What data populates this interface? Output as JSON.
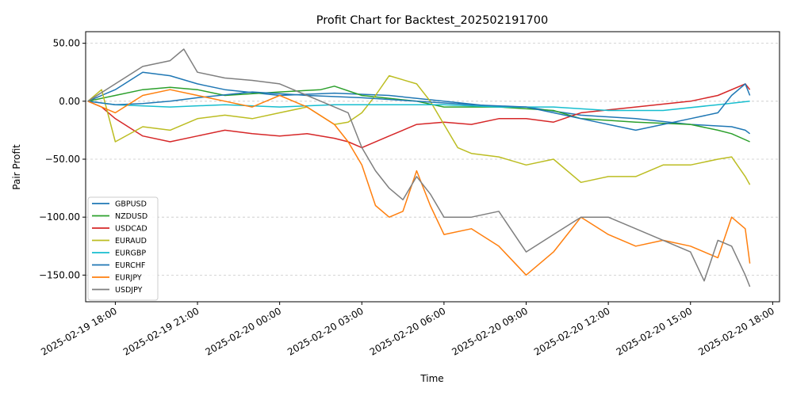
{
  "chart_data": {
    "type": "line",
    "title": "Profit Chart for Backtest_202502191700",
    "xlabel": "Time",
    "ylabel": "Pair Profit",
    "x_axis_type": "datetime",
    "xlim": [
      "2025-02-19 16:55",
      "2025-02-20 18:15"
    ],
    "ylim": [
      -173,
      60
    ],
    "x_ticks": [
      {
        "value": "2025-02-19 18:00",
        "label": "2025-02-19 18:00"
      },
      {
        "value": "2025-02-19 21:00",
        "label": "2025-02-19 21:00"
      },
      {
        "value": "2025-02-20 00:00",
        "label": "2025-02-20 00:00"
      },
      {
        "value": "2025-02-20 03:00",
        "label": "2025-02-20 03:00"
      },
      {
        "value": "2025-02-20 06:00",
        "label": "2025-02-20 06:00"
      },
      {
        "value": "2025-02-20 09:00",
        "label": "2025-02-20 09:00"
      },
      {
        "value": "2025-02-20 12:00",
        "label": "2025-02-20 12:00"
      },
      {
        "value": "2025-02-20 15:00",
        "label": "2025-02-20 15:00"
      },
      {
        "value": "2025-02-20 18:00",
        "label": "2025-02-20 18:00"
      }
    ],
    "y_ticks": [
      {
        "value": 50,
        "label": "50.00"
      },
      {
        "value": 0,
        "label": "0.00"
      },
      {
        "value": -50,
        "label": "−50.00"
      },
      {
        "value": -100,
        "label": "−100.00"
      },
      {
        "value": -150,
        "label": "−150.00"
      }
    ],
    "grid": {
      "y": true,
      "x": false,
      "style": "dashed"
    },
    "legend_position": "lower-left",
    "series": [
      {
        "name": "GBPUSD",
        "color": "#1f77b4",
        "x": [
          "2025-02-19 17:00",
          "2025-02-19 18:00",
          "2025-02-19 19:00",
          "2025-02-19 20:00",
          "2025-02-19 21:00",
          "2025-02-19 22:00",
          "2025-02-20 00:00",
          "2025-02-20 02:00",
          "2025-02-20 04:00",
          "2025-02-20 06:00",
          "2025-02-20 08:00",
          "2025-02-20 09:00",
          "2025-02-20 11:00",
          "2025-02-20 13:00",
          "2025-02-20 15:00",
          "2025-02-20 16:30",
          "2025-02-20 17:00",
          "2025-02-20 17:10"
        ],
        "y": [
          0,
          10,
          25,
          22,
          15,
          10,
          5,
          7,
          5,
          0,
          -5,
          -5,
          -12,
          -15,
          -20,
          -22,
          -25,
          -28
        ]
      },
      {
        "name": "NZDUSD",
        "color": "#2ca02c",
        "x": [
          "2025-02-19 17:00",
          "2025-02-19 18:00",
          "2025-02-19 19:00",
          "2025-02-19 20:00",
          "2025-02-19 21:00",
          "2025-02-19 22:00",
          "2025-02-20 00:00",
          "2025-02-20 01:30",
          "2025-02-20 02:00",
          "2025-02-20 03:00",
          "2025-02-20 05:00",
          "2025-02-20 06:00",
          "2025-02-20 08:00",
          "2025-02-20 10:00",
          "2025-02-20 11:00",
          "2025-02-20 13:00",
          "2025-02-20 15:00",
          "2025-02-20 16:00",
          "2025-02-20 16:30",
          "2025-02-20 17:10"
        ],
        "y": [
          0,
          5,
          10,
          12,
          10,
          5,
          8,
          10,
          13,
          5,
          0,
          -5,
          -5,
          -8,
          -15,
          -18,
          -20,
          -25,
          -28,
          -35
        ]
      },
      {
        "name": "USDCAD",
        "color": "#d62728",
        "x": [
          "2025-02-19 17:00",
          "2025-02-19 17:30",
          "2025-02-19 18:00",
          "2025-02-19 19:00",
          "2025-02-19 20:00",
          "2025-02-19 21:00",
          "2025-02-19 22:00",
          "2025-02-19 23:00",
          "2025-02-20 00:00",
          "2025-02-20 01:00",
          "2025-02-20 02:00",
          "2025-02-20 02:30",
          "2025-02-20 03:00",
          "2025-02-20 04:00",
          "2025-02-20 05:00",
          "2025-02-20 06:00",
          "2025-02-20 07:00",
          "2025-02-20 08:00",
          "2025-02-20 09:00",
          "2025-02-20 10:00",
          "2025-02-20 11:00",
          "2025-02-20 13:00",
          "2025-02-20 15:00",
          "2025-02-20 16:00",
          "2025-02-20 17:00",
          "2025-02-20 17:10"
        ],
        "y": [
          0,
          -5,
          -15,
          -30,
          -35,
          -30,
          -25,
          -28,
          -30,
          -28,
          -32,
          -35,
          -40,
          -30,
          -20,
          -18,
          -20,
          -15,
          -15,
          -18,
          -10,
          -5,
          0,
          5,
          15,
          10
        ]
      },
      {
        "name": "EURAUD",
        "color": "#bcbd22",
        "x": [
          "2025-02-19 17:00",
          "2025-02-19 17:30",
          "2025-02-19 18:00",
          "2025-02-19 19:00",
          "2025-02-19 20:00",
          "2025-02-19 21:00",
          "2025-02-19 22:00",
          "2025-02-19 23:00",
          "2025-02-20 00:00",
          "2025-02-20 01:00",
          "2025-02-20 02:00",
          "2025-02-20 02:30",
          "2025-02-20 03:00",
          "2025-02-20 03:30",
          "2025-02-20 04:00",
          "2025-02-20 05:00",
          "2025-02-20 05:30",
          "2025-02-20 06:00",
          "2025-02-20 06:30",
          "2025-02-20 07:00",
          "2025-02-20 08:00",
          "2025-02-20 09:00",
          "2025-02-20 10:00",
          "2025-02-20 11:00",
          "2025-02-20 12:00",
          "2025-02-20 13:00",
          "2025-02-20 14:00",
          "2025-02-20 15:00",
          "2025-02-20 16:00",
          "2025-02-20 16:30",
          "2025-02-20 17:00",
          "2025-02-20 17:10"
        ],
        "y": [
          0,
          10,
          -35,
          -22,
          -25,
          -15,
          -12,
          -15,
          -10,
          -5,
          -20,
          -18,
          -10,
          5,
          22,
          15,
          0,
          -20,
          -40,
          -45,
          -48,
          -55,
          -50,
          -70,
          -65,
          -65,
          -55,
          -55,
          -50,
          -48,
          -65,
          -72
        ]
      },
      {
        "name": "EURGBP",
        "color": "#17becf",
        "x": [
          "2025-02-19 17:00",
          "2025-02-19 18:00",
          "2025-02-19 20:00",
          "2025-02-19 22:00",
          "2025-02-20 00:00",
          "2025-02-20 02:00",
          "2025-02-20 04:00",
          "2025-02-20 06:00",
          "2025-02-20 08:00",
          "2025-02-20 10:00",
          "2025-02-20 12:00",
          "2025-02-20 14:00",
          "2025-02-20 16:00",
          "2025-02-20 17:10"
        ],
        "y": [
          0,
          -3,
          -5,
          -3,
          -5,
          -3,
          -3,
          -3,
          -5,
          -5,
          -8,
          -8,
          -3,
          0
        ]
      },
      {
        "name": "EURCHF",
        "color": "#1f77b4",
        "x": [
          "2025-02-19 17:00",
          "2025-02-19 18:00",
          "2025-02-19 19:00",
          "2025-02-19 20:00",
          "2025-02-19 21:00",
          "2025-02-19 23:00",
          "2025-02-20 01:00",
          "2025-02-20 03:00",
          "2025-02-20 05:00",
          "2025-02-20 07:00",
          "2025-02-20 09:00",
          "2025-02-20 10:00",
          "2025-02-20 11:00",
          "2025-02-20 12:00",
          "2025-02-20 13:00",
          "2025-02-20 14:00",
          "2025-02-20 15:00",
          "2025-02-20 16:00",
          "2025-02-20 16:30",
          "2025-02-20 17:00",
          "2025-02-20 17:10"
        ],
        "y": [
          0,
          -3,
          -2,
          0,
          3,
          8,
          5,
          3,
          0,
          -3,
          -5,
          -10,
          -15,
          -20,
          -25,
          -20,
          -15,
          -10,
          5,
          15,
          5
        ]
      },
      {
        "name": "EURJPY",
        "color": "#ff7f0e",
        "x": [
          "2025-02-19 17:00",
          "2025-02-19 18:00",
          "2025-02-19 19:00",
          "2025-02-19 20:00",
          "2025-02-19 21:00",
          "2025-02-19 22:00",
          "2025-02-19 23:00",
          "2025-02-20 00:00",
          "2025-02-20 01:00",
          "2025-02-20 02:00",
          "2025-02-20 02:30",
          "2025-02-20 03:00",
          "2025-02-20 03:30",
          "2025-02-20 04:00",
          "2025-02-20 04:30",
          "2025-02-20 05:00",
          "2025-02-20 05:30",
          "2025-02-20 06:00",
          "2025-02-20 07:00",
          "2025-02-20 08:00",
          "2025-02-20 09:00",
          "2025-02-20 10:00",
          "2025-02-20 11:00",
          "2025-02-20 12:00",
          "2025-02-20 13:00",
          "2025-02-20 14:00",
          "2025-02-20 15:00",
          "2025-02-20 16:00",
          "2025-02-20 16:30",
          "2025-02-20 17:00",
          "2025-02-20 17:10"
        ],
        "y": [
          0,
          -10,
          5,
          10,
          5,
          0,
          -5,
          5,
          -5,
          -20,
          -35,
          -55,
          -90,
          -100,
          -95,
          -60,
          -90,
          -115,
          -110,
          -125,
          -150,
          -130,
          -100,
          -115,
          -125,
          -120,
          -125,
          -135,
          -100,
          -110,
          -140
        ]
      },
      {
        "name": "USDJPY",
        "color": "#7f7f7f",
        "x": [
          "2025-02-19 17:00",
          "2025-02-19 18:00",
          "2025-02-19 19:00",
          "2025-02-19 20:00",
          "2025-02-19 20:30",
          "2025-02-19 21:00",
          "2025-02-19 22:00",
          "2025-02-19 23:00",
          "2025-02-20 00:00",
          "2025-02-20 01:00",
          "2025-02-20 02:00",
          "2025-02-20 02:30",
          "2025-02-20 03:00",
          "2025-02-20 03:30",
          "2025-02-20 04:00",
          "2025-02-20 04:30",
          "2025-02-20 05:00",
          "2025-02-20 05:30",
          "2025-02-20 06:00",
          "2025-02-20 07:00",
          "2025-02-20 08:00",
          "2025-02-20 09:00",
          "2025-02-20 10:00",
          "2025-02-20 11:00",
          "2025-02-20 12:00",
          "2025-02-20 13:00",
          "2025-02-20 14:00",
          "2025-02-20 15:00",
          "2025-02-20 15:30",
          "2025-02-20 16:00",
          "2025-02-20 16:30",
          "2025-02-20 17:00",
          "2025-02-20 17:10"
        ],
        "y": [
          0,
          15,
          30,
          35,
          45,
          25,
          20,
          18,
          15,
          5,
          -5,
          -10,
          -40,
          -60,
          -75,
          -85,
          -65,
          -80,
          -100,
          -100,
          -95,
          -130,
          -115,
          -100,
          -100,
          -110,
          -120,
          -130,
          -155,
          -120,
          -125,
          -150,
          -160
        ]
      }
    ]
  }
}
